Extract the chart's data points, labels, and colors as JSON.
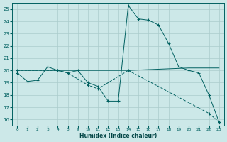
{
  "xlabel": "Humidex (Indice chaleur)",
  "background_color": "#cce8e8",
  "grid_color": "#aacccc",
  "line_color": "#006060",
  "hours": [
    0,
    1,
    2,
    3,
    4,
    8,
    9,
    10,
    11,
    12,
    13,
    14,
    15,
    16,
    17,
    18,
    19,
    20,
    21,
    22,
    23
  ],
  "ylim": [
    15.5,
    25.5
  ],
  "y_ticks": [
    16,
    17,
    18,
    19,
    20,
    21,
    22,
    23,
    24,
    25
  ],
  "series1_hours": [
    0,
    1,
    2,
    3,
    4,
    8,
    9,
    10,
    11,
    12,
    13,
    14,
    15,
    16,
    17,
    18,
    19,
    20,
    21,
    22,
    23
  ],
  "series1_y": [
    19.8,
    19.1,
    19.2,
    20.3,
    20.0,
    19.8,
    20.0,
    19.0,
    18.7,
    17.5,
    17.5,
    25.3,
    24.2,
    24.1,
    23.7,
    22.2,
    20.3,
    20.0,
    19.8,
    18.0,
    15.8
  ],
  "series2_hours": [
    0,
    4,
    14,
    20,
    23
  ],
  "series2_y": [
    20.0,
    20.0,
    20.0,
    20.2,
    20.2
  ],
  "series3_hours": [
    0,
    4,
    8,
    10,
    11,
    14,
    22,
    23
  ],
  "series3_y": [
    20.0,
    20.0,
    19.8,
    18.8,
    18.5,
    20.0,
    16.5,
    15.8
  ]
}
